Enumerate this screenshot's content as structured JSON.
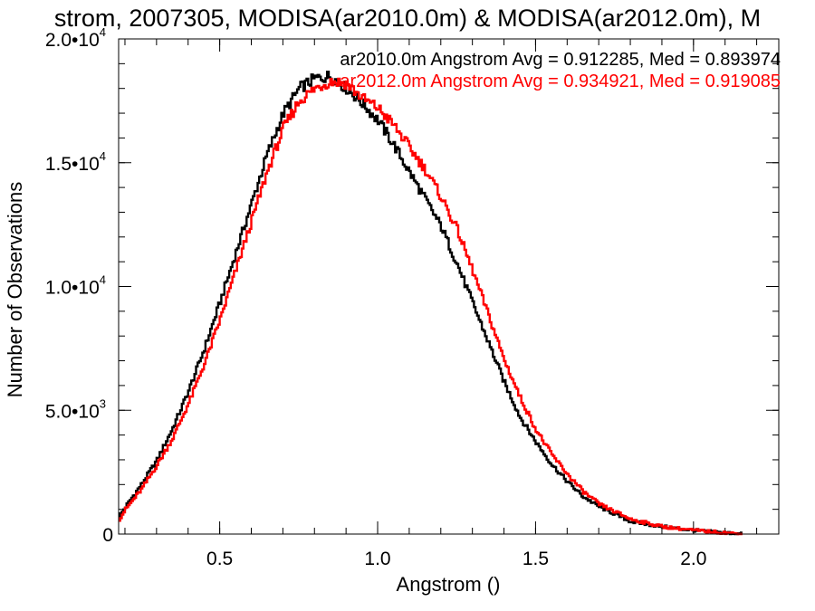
{
  "chart_data": {
    "type": "line",
    "title": "strom, 2007305, MODISA(ar2010.0m) & MODISA(ar2012.0m), M",
    "xlabel": "Angstrom ()",
    "ylabel": "Number of Observations",
    "xlim": [
      0.18,
      2.27
    ],
    "ylim": [
      0,
      20000
    ],
    "x_ticks": [
      {
        "value": 0.5,
        "label": "0.5"
      },
      {
        "value": 1.0,
        "label": "1.0"
      },
      {
        "value": 1.5,
        "label": "1.5"
      },
      {
        "value": 2.0,
        "label": "2.0"
      }
    ],
    "y_ticks": [
      {
        "value": 0,
        "label": "0"
      },
      {
        "value": 5000,
        "label": "5.0•10",
        "exp": "3"
      },
      {
        "value": 10000,
        "label": "1.0•10",
        "exp": "4"
      },
      {
        "value": 15000,
        "label": "1.5•10",
        "exp": "4"
      },
      {
        "value": 20000,
        "label": "2.0•10",
        "exp": "4"
      }
    ],
    "x_minor_step": 0.1,
    "y_minor_step": 1000,
    "step_width": 0.005,
    "series": [
      {
        "name": "ar2010.0m",
        "legend": "ar2010.0m Angstrom Avg = 0.912285, Med = 0.893974",
        "color": "#000000",
        "x": [
          0.18,
          0.2,
          0.25,
          0.3,
          0.35,
          0.4,
          0.45,
          0.5,
          0.55,
          0.6,
          0.65,
          0.7,
          0.75,
          0.8,
          0.85,
          0.9,
          0.95,
          1.0,
          1.05,
          1.1,
          1.15,
          1.2,
          1.25,
          1.3,
          1.35,
          1.4,
          1.45,
          1.5,
          1.55,
          1.6,
          1.65,
          1.7,
          1.8,
          1.9,
          2.0,
          2.1,
          2.15
        ],
        "y": [
          700,
          1100,
          2000,
          3000,
          4300,
          5800,
          7500,
          9400,
          11400,
          13400,
          15400,
          17000,
          18000,
          18400,
          18500,
          18000,
          17400,
          16700,
          15700,
          14600,
          13500,
          12400,
          10900,
          9300,
          7700,
          6100,
          4700,
          3700,
          2800,
          2100,
          1500,
          1100,
          500,
          300,
          150,
          50,
          0
        ]
      },
      {
        "name": "ar2012.0m",
        "legend": "ar2012.0m Angstrom Avg = 0.934921, Med = 0.919085",
        "color": "#ff0000",
        "x": [
          0.18,
          0.2,
          0.25,
          0.3,
          0.35,
          0.4,
          0.45,
          0.5,
          0.55,
          0.6,
          0.65,
          0.7,
          0.75,
          0.8,
          0.85,
          0.9,
          0.95,
          1.0,
          1.05,
          1.1,
          1.15,
          1.2,
          1.25,
          1.3,
          1.35,
          1.4,
          1.45,
          1.5,
          1.55,
          1.6,
          1.65,
          1.7,
          1.8,
          1.9,
          2.0,
          2.1,
          2.15
        ],
        "y": [
          600,
          1000,
          1800,
          2800,
          3900,
          5300,
          6900,
          8700,
          10700,
          12700,
          14700,
          16400,
          17500,
          18000,
          18300,
          18200,
          17600,
          17200,
          16500,
          15600,
          14700,
          13600,
          12300,
          10600,
          8800,
          7000,
          5500,
          4200,
          3200,
          2400,
          1700,
          1200,
          600,
          300,
          150,
          50,
          0
        ]
      }
    ]
  }
}
